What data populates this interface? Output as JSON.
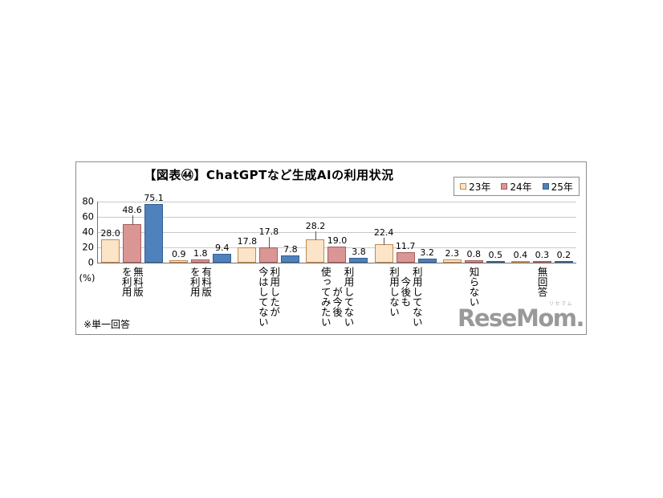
{
  "chart_data": {
    "type": "bar",
    "title": "【図表㊹】ChatGPTなど生成AIの利用状況",
    "ylabel": "(%)",
    "ylim": [
      0,
      80
    ],
    "yticks": [
      0,
      20,
      40,
      60,
      80
    ],
    "grid": "horizontal",
    "legend_position": "top-right",
    "value_label_decimals": 1,
    "categories": [
      "無料版を利用",
      "有料版を利用",
      "利用したが今はしてない",
      "利用してないが今後使ってみたい",
      "利用してない今後も利用しない",
      "知らない",
      "無回答"
    ],
    "category_lines": [
      [
        "無料版",
        "を利用"
      ],
      [
        "有料版",
        "を利用"
      ],
      [
        "利用したが",
        "今はしてない"
      ],
      [
        "利用してない",
        "　　が今後",
        "使ってみたい"
      ],
      [
        "利用してない",
        "　今後も",
        "利用しない"
      ],
      [
        "知らない"
      ],
      [
        "無回答"
      ]
    ],
    "series": [
      {
        "name": "23年",
        "fill": "#fce4c8",
        "border": "#c08a52",
        "values": [
          28.0,
          0.9,
          17.8,
          28.2,
          22.4,
          2.3,
          0.4
        ]
      },
      {
        "name": "24年",
        "fill": "#d99694",
        "border": "#a65f5d",
        "values": [
          48.6,
          1.8,
          17.8,
          19.0,
          11.7,
          0.8,
          0.3
        ]
      },
      {
        "name": "25年",
        "fill": "#4f81bd",
        "border": "#33608f",
        "values": [
          75.1,
          9.4,
          7.8,
          3.8,
          3.2,
          0.5,
          0.2
        ]
      }
    ]
  },
  "footnote": "※単一回答",
  "logo": {
    "text": "ReseMom.",
    "ruby": "リセマム",
    "color": "#97999b"
  }
}
